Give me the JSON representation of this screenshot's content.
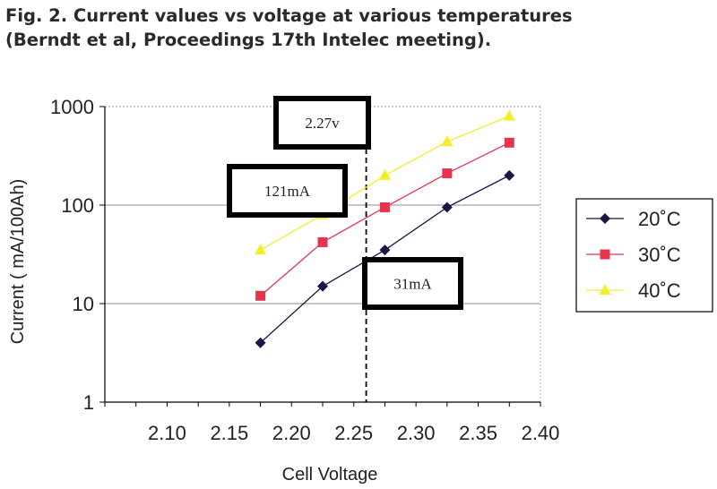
{
  "header": {
    "title_line1": "Fig. 2. Current values vs voltage at various temperatures",
    "title_line2": "(Berndt et al, Proceedings 17th Intelec meeting)."
  },
  "chart_data": {
    "type": "line",
    "xlabel": "Cell Voltage",
    "ylabel": "Current ( mA/100Ah)",
    "x_ticks": [
      "2.10",
      "2.15",
      "2.20",
      "2.25",
      "2.30",
      "2.35",
      "2.40"
    ],
    "y_ticks": [
      "1",
      "10",
      "100",
      "1000"
    ],
    "xlim": [
      2.05,
      2.4
    ],
    "ylim": [
      1,
      1000
    ],
    "y_scale": "log",
    "grid": "horizontal",
    "legend_position": "right",
    "series": [
      {
        "name": "20˚C",
        "color": "#1c1544",
        "marker": "diamond",
        "x": [
          2.175,
          2.225,
          2.275,
          2.325,
          2.375
        ],
        "values": [
          4,
          15,
          35,
          95,
          200
        ]
      },
      {
        "name": "30˚C",
        "color": "#e8334f",
        "marker": "square",
        "x": [
          2.175,
          2.225,
          2.275,
          2.325,
          2.375
        ],
        "values": [
          12,
          42,
          95,
          210,
          430
        ]
      },
      {
        "name": "40˚C",
        "color": "#f2ee2a",
        "marker": "triangle",
        "x": [
          2.175,
          2.225,
          2.275,
          2.325,
          2.375
        ],
        "values": [
          35,
          80,
          200,
          440,
          800
        ]
      }
    ],
    "reference_line": {
      "x": 2.26,
      "style": "dashed"
    },
    "annotations": [
      {
        "text": "2.27v"
      },
      {
        "text": "121mA"
      },
      {
        "text": "31mA"
      }
    ]
  }
}
